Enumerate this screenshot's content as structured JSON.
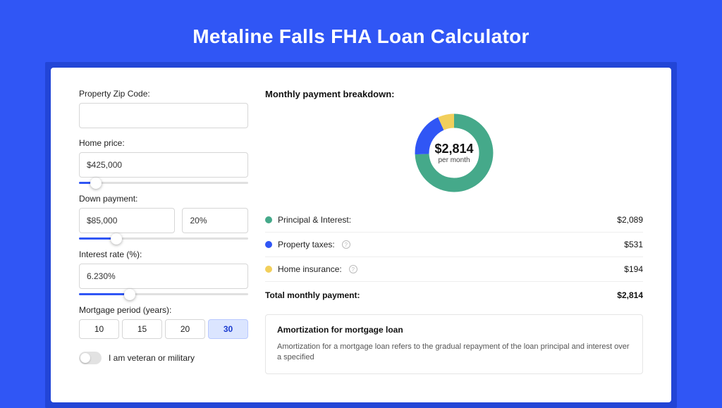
{
  "title": "Metaline Falls FHA Loan Calculator",
  "colors": {
    "page_bg": "#3056f5",
    "card_frame": "#2245d6",
    "principal": "#45a98a",
    "taxes": "#3056f5",
    "insurance": "#f2cf5b"
  },
  "form": {
    "zip": {
      "label": "Property Zip Code:",
      "value": ""
    },
    "home_price": {
      "label": "Home price:",
      "value": "$425,000",
      "slider_pct": 10
    },
    "down_payment": {
      "label": "Down payment:",
      "amount": "$85,000",
      "percent": "20%",
      "slider_pct": 22
    },
    "interest_rate": {
      "label": "Interest rate (%):",
      "value": "6.230%",
      "slider_pct": 30
    },
    "period": {
      "label": "Mortgage period (years):",
      "options": [
        "10",
        "15",
        "20",
        "30"
      ],
      "active_index": 3
    },
    "veteran": {
      "label": "I am veteran or military",
      "on": false
    }
  },
  "breakdown": {
    "heading": "Monthly payment breakdown:",
    "center_amount": "$2,814",
    "center_sub": "per month",
    "items": [
      {
        "label": "Principal & Interest:",
        "value": "$2,089",
        "value_num": 2089,
        "color": "#45a98a",
        "info": false
      },
      {
        "label": "Property taxes:",
        "value": "$531",
        "value_num": 531,
        "color": "#3056f5",
        "info": true
      },
      {
        "label": "Home insurance:",
        "value": "$194",
        "value_num": 194,
        "color": "#f2cf5b",
        "info": true
      }
    ],
    "total_label": "Total monthly payment:",
    "total_value": "$2,814"
  },
  "amortization": {
    "title": "Amortization for mortgage loan",
    "text": "Amortization for a mortgage loan refers to the gradual repayment of the loan principal and interest over a specified"
  }
}
